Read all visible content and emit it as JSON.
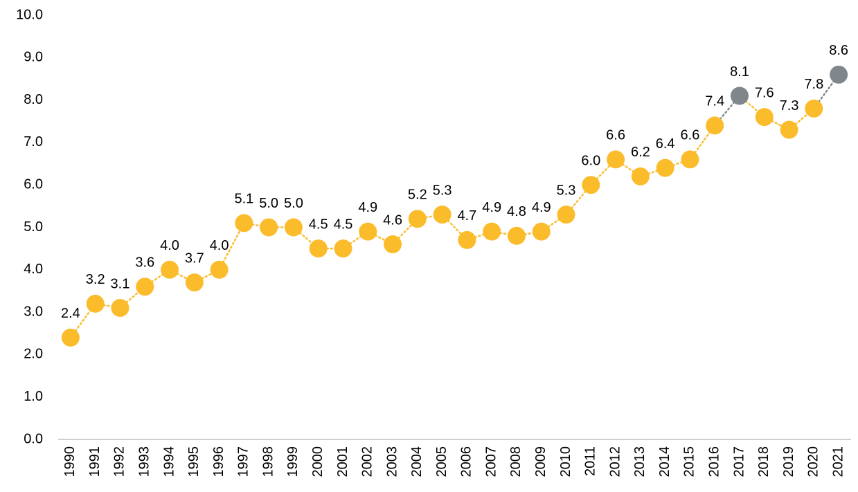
{
  "chart_data": {
    "type": "line",
    "categories": [
      "1990",
      "1991",
      "1992",
      "1993",
      "1994",
      "1995",
      "1996",
      "1997",
      "1998",
      "1999",
      "2000",
      "2001",
      "2002",
      "2003",
      "2004",
      "2005",
      "2006",
      "2007",
      "2008",
      "2009",
      "2010",
      "2011",
      "2012",
      "2013",
      "2014",
      "2015",
      "2016",
      "2017",
      "2018",
      "2019",
      "2020",
      "2021"
    ],
    "values": [
      2.4,
      3.2,
      3.1,
      3.6,
      4.0,
      3.7,
      4.0,
      5.1,
      5.0,
      5.0,
      4.5,
      4.5,
      4.9,
      4.6,
      5.2,
      5.3,
      4.7,
      4.9,
      4.8,
      4.9,
      5.3,
      6.0,
      6.6,
      6.2,
      6.4,
      6.6,
      7.4,
      8.1,
      7.6,
      7.3,
      7.8,
      8.6
    ],
    "value_labels": [
      "2.4",
      "3.2",
      "3.1",
      "3.6",
      "4.0",
      "3.7",
      "4.0",
      "5.1",
      "5.0",
      "5.0",
      "4.5",
      "4.5",
      "4.9",
      "4.6",
      "5.2",
      "5.3",
      "4.7",
      "4.9",
      "4.8",
      "4.9",
      "5.3",
      "6.0",
      "6.6",
      "6.2",
      "6.4",
      "6.6",
      "7.4",
      "8.1",
      "7.6",
      "7.3",
      "7.8",
      "8.6"
    ],
    "color": "#fbbc2c",
    "point_colors": [
      "#fbbc2c",
      "#fbbc2c",
      "#fbbc2c",
      "#fbbc2c",
      "#fbbc2c",
      "#fbbc2c",
      "#fbbc2c",
      "#fbbc2c",
      "#fbbc2c",
      "#fbbc2c",
      "#fbbc2c",
      "#fbbc2c",
      "#fbbc2c",
      "#fbbc2c",
      "#fbbc2c",
      "#fbbc2c",
      "#fbbc2c",
      "#fbbc2c",
      "#fbbc2c",
      "#fbbc2c",
      "#fbbc2c",
      "#fbbc2c",
      "#fbbc2c",
      "#fbbc2c",
      "#fbbc2c",
      "#fbbc2c",
      "#fbbc2c",
      "#7f868c",
      "#fbbc2c",
      "#fbbc2c",
      "#fbbc2c",
      "#7f868c"
    ],
    "ylim": [
      0,
      10
    ],
    "yticks": [
      {
        "value": 0,
        "label": "0.0"
      },
      {
        "value": 1,
        "label": "1.0"
      },
      {
        "value": 2,
        "label": "2.0"
      },
      {
        "value": 3,
        "label": "3.0"
      },
      {
        "value": 4,
        "label": "4.0"
      },
      {
        "value": 5,
        "label": "5.0"
      },
      {
        "value": 6,
        "label": "6.0"
      },
      {
        "value": 7,
        "label": "7.0"
      },
      {
        "value": 8,
        "label": "8.0"
      },
      {
        "value": 9,
        "label": "9.0"
      },
      {
        "value": 10,
        "label": "10.0"
      }
    ],
    "grid": false
  }
}
